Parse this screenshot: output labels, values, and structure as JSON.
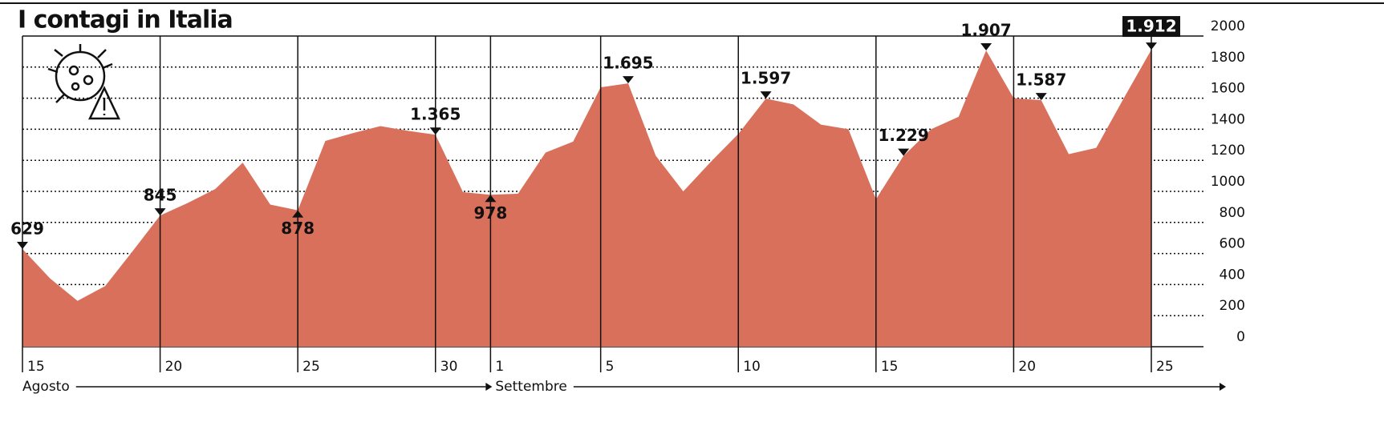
{
  "chart_data": {
    "type": "area",
    "title": "I contagi in Italia",
    "categories": [
      "15",
      null,
      null,
      null,
      null,
      "20",
      null,
      null,
      null,
      null,
      "25",
      null,
      null,
      null,
      null,
      "30",
      null,
      "1",
      null,
      null,
      null,
      "5",
      null,
      null,
      null,
      null,
      "10",
      null,
      null,
      null,
      null,
      "15",
      null,
      null,
      null,
      null,
      "20",
      null,
      null,
      null,
      null,
      "25"
    ],
    "months": [
      "Agosto",
      "Settembre"
    ],
    "values": [
      629,
      440,
      295,
      390,
      615,
      845,
      925,
      1015,
      1185,
      915,
      878,
      1325,
      1375,
      1420,
      1390,
      1365,
      995,
      978,
      985,
      1250,
      1320,
      1670,
      1695,
      1230,
      1000,
      1190,
      1370,
      1597,
      1560,
      1430,
      1400,
      950,
      1229,
      1400,
      1480,
      1907,
      1600,
      1587,
      1240,
      1280,
      1600,
      1912
    ],
    "value_labels": [
      "629",
      null,
      null,
      null,
      null,
      "845",
      null,
      null,
      null,
      null,
      "878",
      null,
      null,
      null,
      null,
      "1.365",
      null,
      "978",
      null,
      null,
      null,
      null,
      "1.695",
      null,
      null,
      null,
      null,
      "1.597",
      null,
      null,
      null,
      null,
      "1.229",
      null,
      null,
      "1.907",
      null,
      "1.587",
      null,
      null,
      null,
      "1.912"
    ],
    "color": "#d9705b",
    "ylim": [
      0,
      2000
    ],
    "yticks": [
      0,
      200,
      400,
      600,
      800,
      1000,
      1200,
      1400,
      1600,
      1800,
      2000
    ],
    "grid": true
  }
}
